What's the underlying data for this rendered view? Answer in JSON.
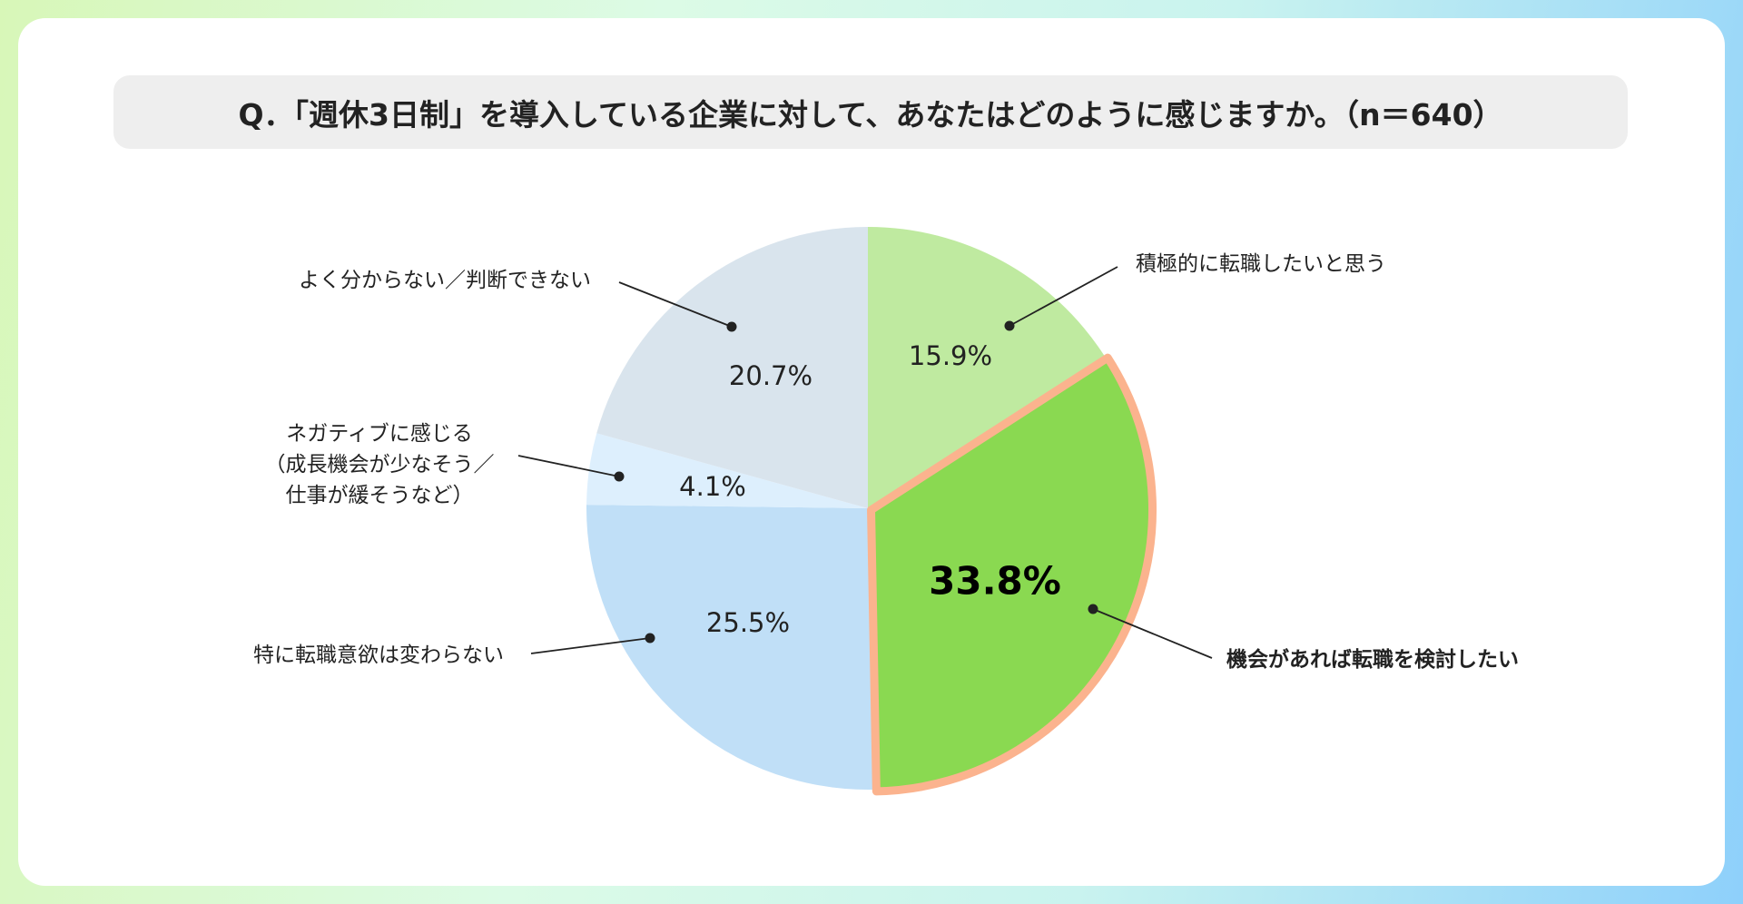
{
  "chart_data": {
    "type": "pie",
    "title": "Q．「週休3日制」を導入している企業に対して、あなたはどのように感じますか。（n＝640）",
    "slices": [
      {
        "label": "積極的に転職したいと思う",
        "value": 15.9,
        "display": "15.9%",
        "color": "#bfeaa0"
      },
      {
        "label": "機会があれば転職を検討したい",
        "value": 33.8,
        "display": "33.8%",
        "color": "#8ad951",
        "highlight": true,
        "outline": "#fbb38e"
      },
      {
        "label": "特に転職意欲は変わらない",
        "value": 25.5,
        "display": "25.5%",
        "color": "#c0dff7"
      },
      {
        "label": [
          "ネガティブに感じる",
          "（成長機会が少なそう／",
          "仕事が緩そうなど）"
        ],
        "value": 4.1,
        "display": "4.1%",
        "color": "#ddeffd"
      },
      {
        "label": "よく分からない／判断できない",
        "value": 20.7,
        "display": "20.7%",
        "color": "#d9e4ed"
      }
    ],
    "start": "top",
    "direction": "clockwise",
    "unit": "%"
  }
}
